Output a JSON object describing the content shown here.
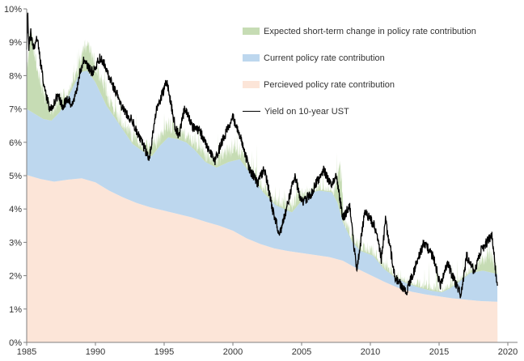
{
  "chart_data": {
    "type": "area",
    "subtype": "stacked-area-with-line",
    "title": "",
    "xlabel": "",
    "ylabel": "",
    "x_range": [
      1985,
      2020
    ],
    "y_range_pct": [
      0,
      10
    ],
    "data_end_x": 2019.25,
    "grid": "off",
    "legend_position": "top-right-inside",
    "axis_color": "#7f7f7f",
    "y_ticks": [
      {
        "v": 10,
        "label": "10%"
      },
      {
        "v": 9,
        "label": "9%"
      },
      {
        "v": 8,
        "label": "8%"
      },
      {
        "v": 7,
        "label": "7%"
      },
      {
        "v": 6,
        "label": "6%"
      },
      {
        "v": 5,
        "label": "5%"
      },
      {
        "v": 4,
        "label": "4%"
      },
      {
        "v": 3,
        "label": "3%"
      },
      {
        "v": 2,
        "label": "2%"
      },
      {
        "v": 1,
        "label": "1%"
      },
      {
        "v": 0,
        "label": "0%"
      }
    ],
    "x_ticks": [
      {
        "v": 1985,
        "label": "1985"
      },
      {
        "v": 1990,
        "label": "1990"
      },
      {
        "v": 1995,
        "label": "1995"
      },
      {
        "v": 2000,
        "label": "2000"
      },
      {
        "v": 2005,
        "label": "2005"
      },
      {
        "v": 2010,
        "label": "2010"
      },
      {
        "v": 2015,
        "label": "2015"
      },
      {
        "v": 2020,
        "label": "2020"
      }
    ],
    "stacking_note": "area series below are cumulative top boundaries in % read off the chart: perceived_top, then current_top above it, then expected_top; yield line drawn on top",
    "noise_note": "green top edge and black line are rendered with small deterministic high-frequency jitter to match the spiky weekly texture of the original",
    "series": [
      {
        "key": "perceived_top",
        "name": "Percieved policy rate contribution",
        "role": "area-boundary",
        "fill": "#fce5d8",
        "points": [
          [
            1985,
            5.02
          ],
          [
            1986,
            4.9
          ],
          [
            1987,
            4.82
          ],
          [
            1988,
            4.88
          ],
          [
            1989,
            4.92
          ],
          [
            1990,
            4.8
          ],
          [
            1991,
            4.55
          ],
          [
            1992,
            4.35
          ],
          [
            1993,
            4.18
          ],
          [
            1994,
            4.05
          ],
          [
            1995,
            3.95
          ],
          [
            1996,
            3.85
          ],
          [
            1997,
            3.75
          ],
          [
            1998,
            3.62
          ],
          [
            1999,
            3.5
          ],
          [
            2000,
            3.35
          ],
          [
            2001,
            3.12
          ],
          [
            2002,
            2.95
          ],
          [
            2003,
            2.82
          ],
          [
            2004,
            2.74
          ],
          [
            2005,
            2.68
          ],
          [
            2006,
            2.62
          ],
          [
            2007,
            2.56
          ],
          [
            2008,
            2.45
          ],
          [
            2009,
            2.22
          ],
          [
            2010,
            2.02
          ],
          [
            2011,
            1.82
          ],
          [
            2012,
            1.64
          ],
          [
            2013,
            1.52
          ],
          [
            2014,
            1.44
          ],
          [
            2015,
            1.38
          ],
          [
            2016,
            1.32
          ],
          [
            2017,
            1.28
          ],
          [
            2018,
            1.24
          ],
          [
            2019.25,
            1.22
          ]
        ]
      },
      {
        "key": "current_top",
        "name": "Current policy rate contribution",
        "role": "area-boundary",
        "fill": "#bdd7ee",
        "points": [
          [
            1985,
            7.0
          ],
          [
            1985.6,
            6.85
          ],
          [
            1986.2,
            6.7
          ],
          [
            1986.8,
            6.65
          ],
          [
            1987.4,
            6.9
          ],
          [
            1988,
            7.35
          ],
          [
            1988.9,
            8.1
          ],
          [
            1989.4,
            8.15
          ],
          [
            1990,
            7.8
          ],
          [
            1990.8,
            7.1
          ],
          [
            1991.8,
            6.5
          ],
          [
            1992.7,
            5.95
          ],
          [
            1993.7,
            5.66
          ],
          [
            1994.1,
            5.58
          ],
          [
            1994.7,
            5.9
          ],
          [
            1995.3,
            6.15
          ],
          [
            1995.9,
            6.1
          ],
          [
            1996.6,
            6.0
          ],
          [
            1997.2,
            5.78
          ],
          [
            1998,
            5.41
          ],
          [
            1998.8,
            5.24
          ],
          [
            1999.7,
            5.41
          ],
          [
            2000.5,
            5.49
          ],
          [
            2001.2,
            5.1
          ],
          [
            2002.2,
            4.5
          ],
          [
            2003.1,
            4.12
          ],
          [
            2004,
            3.95
          ],
          [
            2004.3,
            3.9
          ],
          [
            2004.9,
            4.2
          ],
          [
            2005.7,
            4.5
          ],
          [
            2006.3,
            4.55
          ],
          [
            2007.2,
            4.5
          ],
          [
            2007.6,
            4.2
          ],
          [
            2008,
            3.6
          ],
          [
            2008.7,
            3.0
          ],
          [
            2009.3,
            2.74
          ],
          [
            2010.2,
            2.6
          ],
          [
            2011,
            2.2
          ],
          [
            2011.8,
            1.95
          ],
          [
            2012.6,
            1.78
          ],
          [
            2013.5,
            1.65
          ],
          [
            2014.4,
            1.55
          ],
          [
            2015.2,
            1.5
          ],
          [
            2015.8,
            1.62
          ],
          [
            2016.4,
            1.8
          ],
          [
            2017.3,
            2.09
          ],
          [
            2018.2,
            2.15
          ],
          [
            2019.25,
            2.05
          ]
        ]
      },
      {
        "key": "expected_top",
        "name": "Expected short-term change in policy rate contribution",
        "role": "area-boundary",
        "fill": "#c6dcb4",
        "points": [
          [
            1985,
            8.3
          ],
          [
            1985.3,
            9.6
          ],
          [
            1986,
            8.0
          ],
          [
            1986.8,
            7.2
          ],
          [
            1987.5,
            7.6
          ],
          [
            1988,
            7.7
          ],
          [
            1988.8,
            8.6
          ],
          [
            1989.3,
            9.2
          ],
          [
            1990,
            8.6
          ],
          [
            1990.8,
            7.7
          ],
          [
            1991.8,
            6.9
          ],
          [
            1992.7,
            6.4
          ],
          [
            1993.7,
            6.1
          ],
          [
            1994.5,
            6.3
          ],
          [
            1995.3,
            6.8
          ],
          [
            1996,
            6.6
          ],
          [
            1997,
            6.3
          ],
          [
            1998,
            5.9
          ],
          [
            1998.8,
            5.7
          ],
          [
            1999.7,
            6.0
          ],
          [
            2000.5,
            6.0
          ],
          [
            2001.4,
            5.4
          ],
          [
            2002.2,
            4.9
          ],
          [
            2003.1,
            4.4
          ],
          [
            2004,
            4.3
          ],
          [
            2004.9,
            4.6
          ],
          [
            2005.7,
            4.8
          ],
          [
            2006.3,
            4.8
          ],
          [
            2007.3,
            4.7
          ],
          [
            2007.8,
            5.5
          ],
          [
            2008.1,
            3.9
          ],
          [
            2008.7,
            3.3
          ],
          [
            2009.3,
            3.1
          ],
          [
            2010.2,
            2.9
          ],
          [
            2011.5,
            2.3
          ],
          [
            2012.5,
            2.0
          ],
          [
            2013.5,
            1.95
          ],
          [
            2014.5,
            1.8
          ],
          [
            2015.3,
            1.75
          ],
          [
            2016.3,
            2.0
          ],
          [
            2017.3,
            2.35
          ],
          [
            2018.2,
            2.75
          ],
          [
            2018.7,
            2.9
          ],
          [
            2019.25,
            2.45
          ]
        ]
      },
      {
        "key": "yield_10y",
        "name": "Yield on 10-year UST",
        "role": "line",
        "stroke": "#000000",
        "points": [
          [
            1985,
            8.9
          ],
          [
            1985.08,
            9.9
          ],
          [
            1985.15,
            8.8
          ],
          [
            1985.3,
            9.3
          ],
          [
            1985.5,
            8.8
          ],
          [
            1985.75,
            9.15
          ],
          [
            1986,
            8.4
          ],
          [
            1986.3,
            7.6
          ],
          [
            1986.7,
            6.95
          ],
          [
            1987,
            7.15
          ],
          [
            1987.3,
            7.45
          ],
          [
            1987.6,
            7.05
          ],
          [
            1988,
            7.3
          ],
          [
            1988.3,
            7.05
          ],
          [
            1988.6,
            7.5
          ],
          [
            1988.9,
            8.15
          ],
          [
            1989.2,
            8.5
          ],
          [
            1989.5,
            8.25
          ],
          [
            1989.8,
            8.1
          ],
          [
            1990.1,
            8.35
          ],
          [
            1990.35,
            8.55
          ],
          [
            1990.7,
            8.3
          ],
          [
            1991,
            7.95
          ],
          [
            1991.4,
            7.6
          ],
          [
            1991.8,
            7.2
          ],
          [
            1992.2,
            6.85
          ],
          [
            1992.6,
            6.7
          ],
          [
            1993,
            6.35
          ],
          [
            1993.4,
            6.0
          ],
          [
            1993.9,
            5.45
          ],
          [
            1994.4,
            6.9
          ],
          [
            1995.2,
            7.85
          ],
          [
            1995.8,
            6.45
          ],
          [
            1996.1,
            6.2
          ],
          [
            1996.5,
            7.05
          ],
          [
            1997,
            6.5
          ],
          [
            1997.6,
            6.35
          ],
          [
            1998,
            5.95
          ],
          [
            1998.7,
            5.45
          ],
          [
            1999.3,
            6.1
          ],
          [
            2000,
            6.75
          ],
          [
            2000.6,
            6.1
          ],
          [
            2001.2,
            5.2
          ],
          [
            2001.8,
            4.8
          ],
          [
            2002.3,
            5.2
          ],
          [
            2002.9,
            3.95
          ],
          [
            2003.4,
            3.2
          ],
          [
            2004,
            4.2
          ],
          [
            2004.5,
            5.0
          ],
          [
            2005,
            4.2
          ],
          [
            2005.6,
            4.4
          ],
          [
            2006.6,
            5.2
          ],
          [
            2007.2,
            4.65
          ],
          [
            2007.5,
            5.1
          ],
          [
            2008,
            3.7
          ],
          [
            2008.5,
            4.1
          ],
          [
            2009,
            2.15
          ],
          [
            2009.6,
            3.9
          ],
          [
            2010.3,
            3.5
          ],
          [
            2010.8,
            2.5
          ],
          [
            2011.1,
            3.65
          ],
          [
            2011.8,
            1.95
          ],
          [
            2012.6,
            1.5
          ],
          [
            2013,
            1.95
          ],
          [
            2013.9,
            3.0
          ],
          [
            2014.6,
            2.55
          ],
          [
            2015.1,
            1.7
          ],
          [
            2015.6,
            2.4
          ],
          [
            2016,
            1.95
          ],
          [
            2016.6,
            1.4
          ],
          [
            2017,
            2.6
          ],
          [
            2017.6,
            2.1
          ],
          [
            2018,
            2.75
          ],
          [
            2018.85,
            3.2
          ],
          [
            2019.25,
            1.6
          ]
        ]
      }
    ],
    "legend": {
      "items": [
        {
          "swatch": "rect",
          "color": "#c6dcb4",
          "label": "Expected short-term change in policy rate contribution"
        },
        {
          "swatch": "rect",
          "color": "#bdd7ee",
          "label": "Current policy rate contribution"
        },
        {
          "swatch": "rect",
          "color": "#fce5d8",
          "label": "Percieved policy rate contribution"
        },
        {
          "swatch": "line",
          "color": "#000000",
          "label": "Yield on 10-year UST"
        }
      ]
    }
  }
}
